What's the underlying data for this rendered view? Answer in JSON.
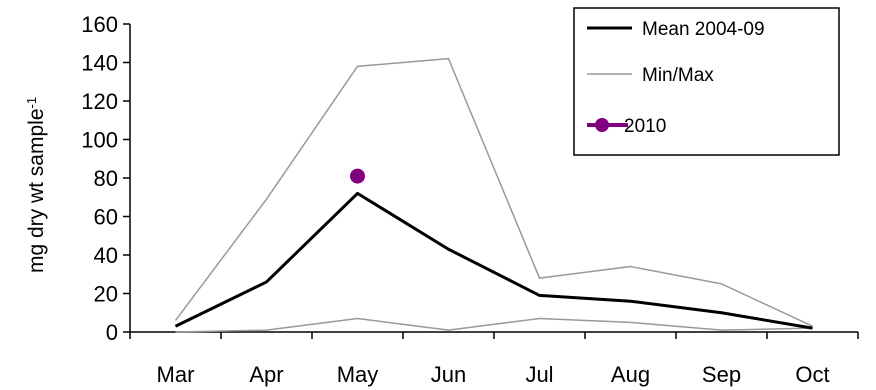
{
  "chart_data": {
    "type": "line",
    "categories": [
      "Mar",
      "Apr",
      "May",
      "Jun",
      "Jul",
      "Aug",
      "Sep",
      "Oct"
    ],
    "ylabel": "mg dry wt sample",
    "ylabel_superscript": "-1",
    "ylim": [
      0,
      160
    ],
    "yticks": [
      0,
      20,
      40,
      60,
      80,
      100,
      120,
      140,
      160
    ],
    "grid": false,
    "legend_position": "top-right",
    "series": [
      {
        "name": "Mean 2004-09",
        "color": "#000000",
        "values": [
          3,
          26,
          72,
          43,
          19,
          16,
          10,
          2
        ]
      },
      {
        "name": "Min/Max",
        "color": "#999999",
        "values": [
          6,
          69,
          138,
          142,
          28,
          34,
          25,
          3
        ]
      },
      {
        "name": "",
        "color": "#999999",
        "values": [
          0,
          1,
          7,
          1,
          7,
          5,
          1,
          2
        ]
      },
      {
        "name": "2010",
        "color": "#800080",
        "values": [
          null,
          null,
          81,
          null,
          null,
          null,
          null,
          null
        ]
      }
    ]
  }
}
